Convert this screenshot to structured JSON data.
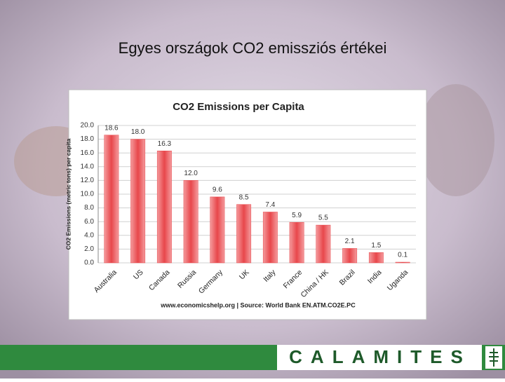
{
  "slide": {
    "title": "Egyes országok CO2 emissziós értékei",
    "footer": "CALAMITES"
  },
  "chart_data": {
    "type": "bar",
    "title": "CO2 Emissions per Capita",
    "y_label": "CO2 Emissions (metric tons) per capita",
    "source": "www.economicshelp.org | Source: World Bank EN.ATM.CO2E.PC",
    "categories": [
      "Australia",
      "US",
      "Canada",
      "Russia",
      "Germany",
      "UK",
      "Italy",
      "France",
      "China / HK",
      "Brazil",
      "India",
      "Uganda"
    ],
    "values": [
      18.6,
      18.0,
      16.3,
      12.0,
      9.6,
      8.5,
      7.4,
      5.9,
      5.5,
      2.1,
      1.5,
      0.1
    ],
    "value_labels": [
      "18.6",
      "18.0",
      "16.3",
      "12.0",
      "9.6",
      "8.5",
      "7.4",
      "5.9",
      "5.5",
      "2.1",
      "1.5",
      "0.1"
    ],
    "color": "#e8474b",
    "ylim": [
      0,
      20
    ],
    "yticks": [
      {
        "value": 0,
        "label": "0.0"
      },
      {
        "value": 2,
        "label": "2.0"
      },
      {
        "value": 4,
        "label": "4.0"
      },
      {
        "value": 6,
        "label": "6.0"
      },
      {
        "value": 8,
        "label": "8.0"
      },
      {
        "value": 10,
        "label": "10.0"
      },
      {
        "value": 12,
        "label": "12.0"
      },
      {
        "value": 14,
        "label": "14.0"
      },
      {
        "value": 16,
        "label": "16.0"
      },
      {
        "value": 18,
        "label": "18.0"
      },
      {
        "value": 20,
        "label": "20.0"
      }
    ],
    "grid": true
  }
}
